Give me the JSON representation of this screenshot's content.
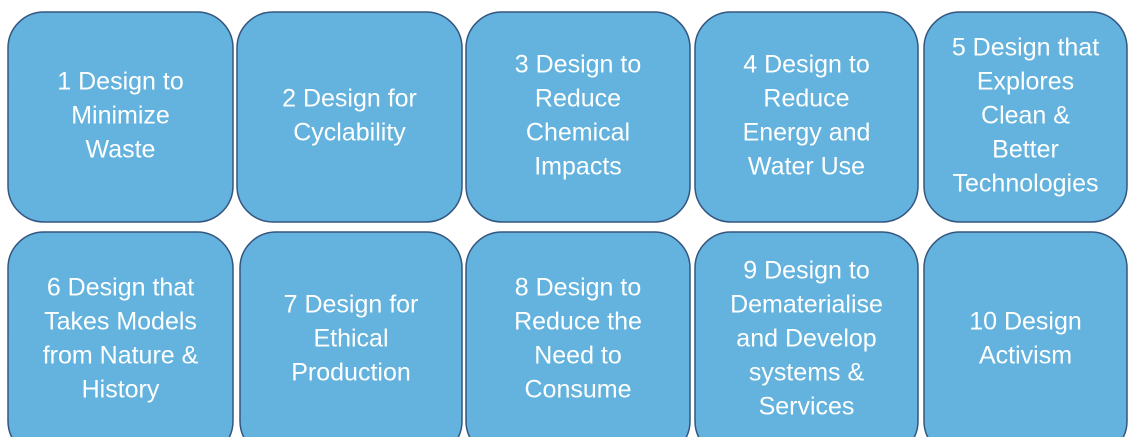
{
  "nodes": [
    {
      "lines": [
        "1 Design to",
        "Minimize",
        "Waste"
      ]
    },
    {
      "lines": [
        "2 Design for",
        "Cyclability"
      ]
    },
    {
      "lines": [
        "3 Design to",
        "Reduce",
        "Chemical",
        "Impacts"
      ]
    },
    {
      "lines": [
        "4 Design to",
        "Reduce",
        "Energy and",
        "Water Use"
      ]
    },
    {
      "lines": [
        "5 Design that",
        "Explores",
        "Clean &",
        "Better",
        "Technologies"
      ]
    },
    {
      "lines": [
        "6 Design that",
        "Takes Models",
        "from Nature &",
        "History"
      ]
    },
    {
      "lines": [
        "7 Design for",
        "Ethical",
        "Production"
      ]
    },
    {
      "lines": [
        "8 Design to",
        "Reduce the",
        "Need to",
        "Consume"
      ]
    },
    {
      "lines": [
        "9 Design to",
        "Dematerialise",
        "and Develop",
        "systems &",
        "Services"
      ]
    },
    {
      "lines": [
        "10 Design",
        "Activism"
      ]
    }
  ]
}
